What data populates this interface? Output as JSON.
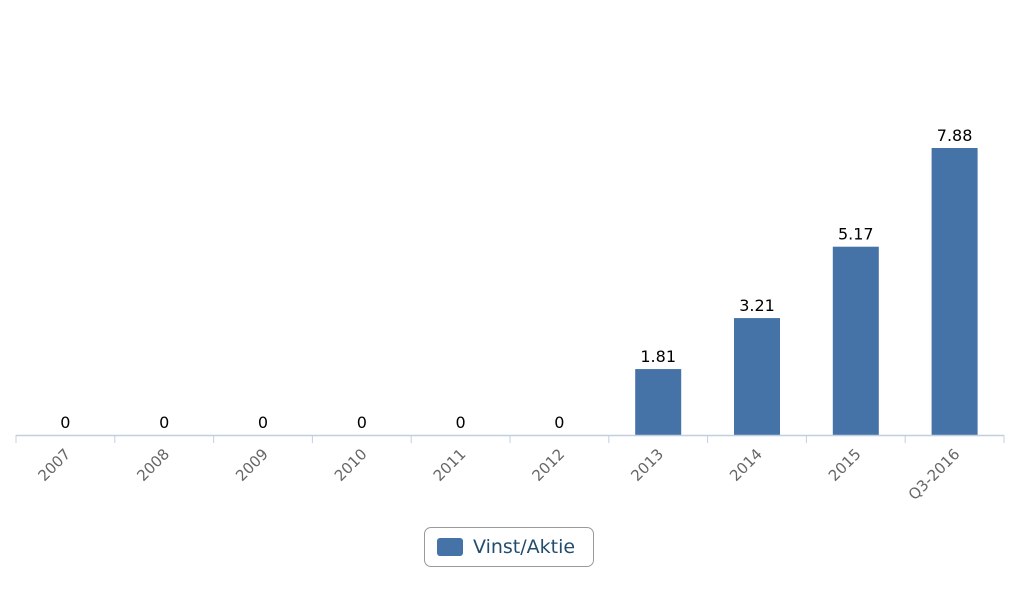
{
  "colors": {
    "bar": "#4572a7",
    "axis": "#c0d0e0",
    "tick_label": "#666666",
    "data_label": "#000000"
  },
  "legend": {
    "label": "Vinst/Aktie",
    "position": "bottom-center"
  },
  "chart_data": {
    "type": "bar",
    "categories": [
      "2007",
      "2008",
      "2009",
      "2010",
      "2011",
      "2012",
      "2013",
      "2014",
      "2015",
      "Q3-2016"
    ],
    "series": [
      {
        "name": "Vinst/Aktie",
        "values": [
          0,
          0,
          0,
          0,
          0,
          0,
          1.81,
          3.21,
          5.17,
          7.88
        ],
        "data_labels": [
          "0",
          "0",
          "0",
          "0",
          "0",
          "0",
          "1.81",
          "3.21",
          "5.17",
          "7.88"
        ]
      }
    ],
    "title": "",
    "xlabel": "",
    "ylabel": "",
    "ylim": [
      0,
      7.88
    ],
    "grid": false,
    "x_tick_rotation": "diagonal",
    "legend_placement": "bottom-center"
  }
}
